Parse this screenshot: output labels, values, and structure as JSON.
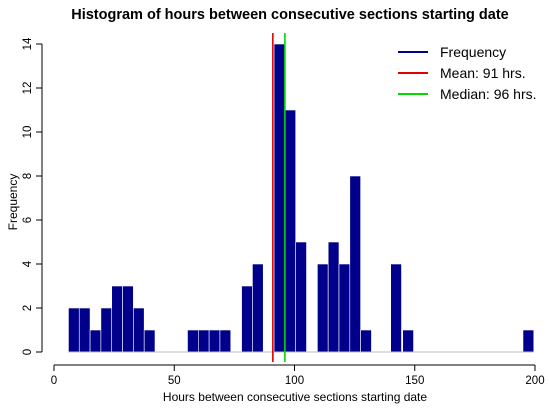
{
  "chart_data": {
    "type": "bar",
    "title": "Histogram of hours between consecutive sections starting date",
    "xlabel": "Hours between consecutive sections starting date",
    "ylabel": "Frequency",
    "xlim": [
      0,
      200
    ],
    "ylim": [
      0,
      14
    ],
    "xticks": [
      0,
      50,
      100,
      150,
      200
    ],
    "yticks": [
      0,
      2,
      4,
      6,
      8,
      10,
      12,
      14
    ],
    "bin_width": 4.5,
    "bins": [
      {
        "start": 6,
        "count": 2
      },
      {
        "start": 10.5,
        "count": 2
      },
      {
        "start": 15,
        "count": 1
      },
      {
        "start": 19.5,
        "count": 2
      },
      {
        "start": 24,
        "count": 3
      },
      {
        "start": 28.5,
        "count": 3
      },
      {
        "start": 33,
        "count": 2
      },
      {
        "start": 37.5,
        "count": 1
      },
      {
        "start": 55.5,
        "count": 1
      },
      {
        "start": 60,
        "count": 1
      },
      {
        "start": 64.5,
        "count": 1
      },
      {
        "start": 69,
        "count": 1
      },
      {
        "start": 78,
        "count": 3
      },
      {
        "start": 82.5,
        "count": 4
      },
      {
        "start": 91.5,
        "count": 14
      },
      {
        "start": 96,
        "count": 11
      },
      {
        "start": 100.5,
        "count": 5
      },
      {
        "start": 109.5,
        "count": 4
      },
      {
        "start": 114,
        "count": 5
      },
      {
        "start": 118.5,
        "count": 4
      },
      {
        "start": 123,
        "count": 8
      },
      {
        "start": 127.5,
        "count": 1
      },
      {
        "start": 140,
        "count": 4
      },
      {
        "start": 145,
        "count": 1
      },
      {
        "start": 195,
        "count": 1
      }
    ],
    "reference_lines": [
      {
        "name": "Mean: 91 hrs.",
        "value": 91,
        "color": "#e00000"
      },
      {
        "name": "Median: 96 hrs.",
        "value": 96,
        "color": "#00d800"
      }
    ],
    "bar_color": "#00008b",
    "legend": {
      "position": "top-right",
      "entries": [
        {
          "label": "Frequency",
          "color": "#00008b"
        },
        {
          "label": "Mean: 91 hrs.",
          "color": "#e00000"
        },
        {
          "label": "Median: 96 hrs.",
          "color": "#00d800"
        }
      ]
    },
    "grid": false
  }
}
